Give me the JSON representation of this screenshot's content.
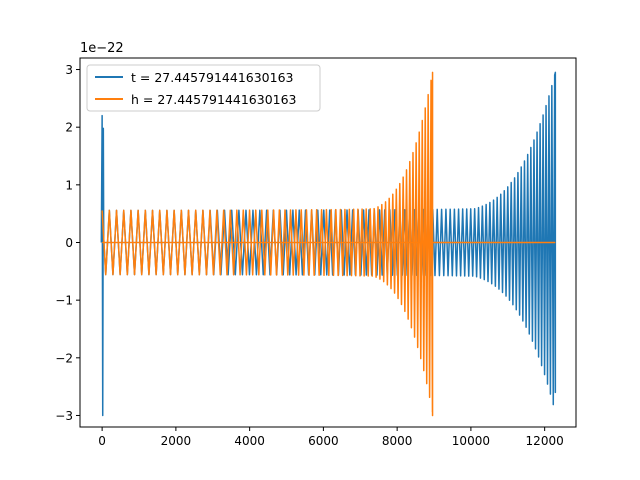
{
  "chart_data": {
    "type": "line",
    "title": "",
    "xlabel": "",
    "ylabel": "",
    "offset_label": "1e−22",
    "xlim": [
      -600,
      12850
    ],
    "ylim": [
      -3.2,
      3.2
    ],
    "xticks": [
      0,
      2000,
      4000,
      6000,
      8000,
      10000,
      12000
    ],
    "yticks": [
      -3,
      -2,
      -1,
      0,
      1,
      2,
      3
    ],
    "legend": "top-left",
    "series": [
      {
        "name": "t = 27.445791441630163",
        "color": "#1f77b4",
        "draw_order": 0,
        "segments": [
          {
            "kind": "spike",
            "x": 0,
            "min": -3.0,
            "max": 2.2
          },
          {
            "kind": "chirp",
            "x_start": 0,
            "x_end": 12290,
            "amp_start": 0.5,
            "amp_mid": 0.55,
            "amp_end": 2.95,
            "min_end": -2.6
          }
        ]
      },
      {
        "name": "h = 27.445791441630163",
        "color": "#ff7f0e",
        "draw_order": 1,
        "segments": [
          {
            "kind": "chirp",
            "x_start": 0,
            "x_end": 8960,
            "amp_start": 0.5,
            "amp_mid": 0.55,
            "amp_end": 2.95,
            "min_end": -3.0
          },
          {
            "kind": "flat",
            "x_start": 8960,
            "x_end": 12290,
            "value": 0.0
          }
        ]
      }
    ]
  }
}
